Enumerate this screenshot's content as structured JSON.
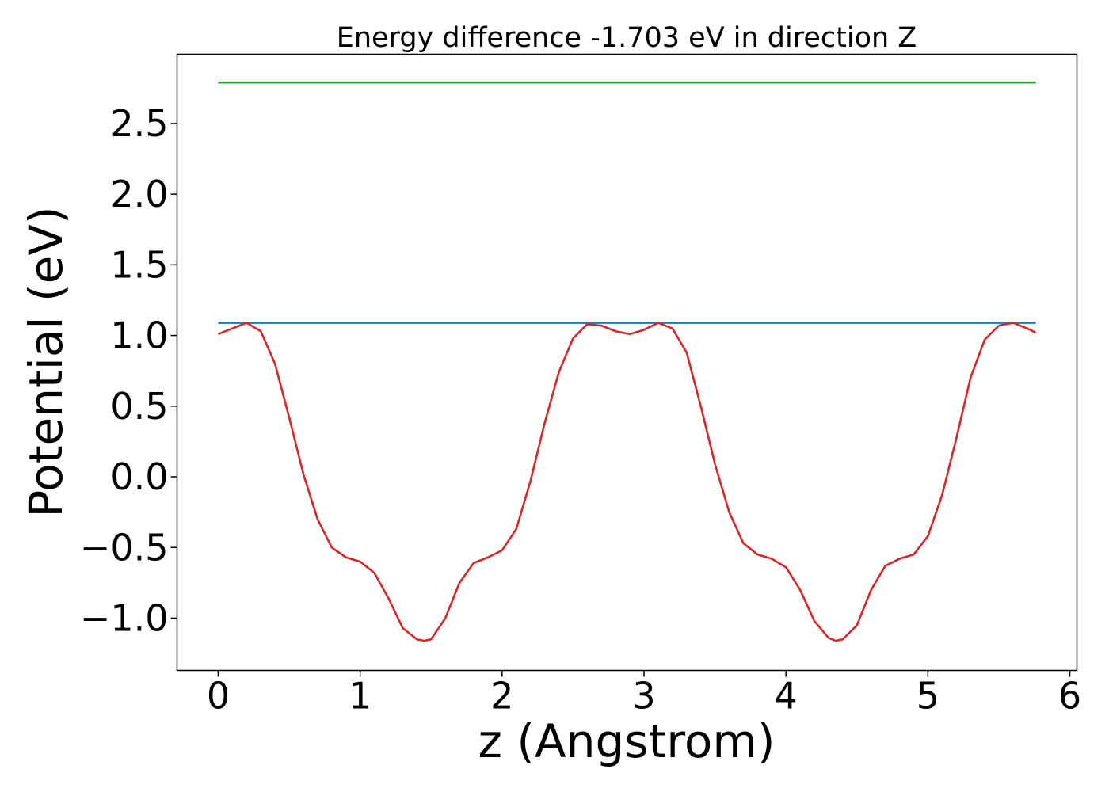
{
  "chart_data": {
    "type": "line",
    "title": "Energy difference -1.703 eV in direction Z",
    "xlabel": "z (Angstrom)",
    "ylabel": "Potential (eV)",
    "xlim": [
      -0.29,
      6.05
    ],
    "ylim": [
      -1.37,
      2.99
    ],
    "xticks": [
      0,
      1,
      2,
      3,
      4,
      5,
      6
    ],
    "xtick_labels": [
      "0",
      "1",
      "2",
      "3",
      "4",
      "5",
      "6"
    ],
    "yticks": [
      -1.0,
      -0.5,
      0.0,
      0.5,
      1.0,
      1.5,
      2.0,
      2.5
    ],
    "ytick_labels": [
      "−1.0",
      "−0.5",
      "0.0",
      "0.5",
      "1.0",
      "1.5",
      "2.0",
      "2.5"
    ],
    "grid": false,
    "legend": "none",
    "colors": {
      "potential": "#d62728",
      "level_low": "#1f77b4",
      "level_high": "#2ca02c"
    },
    "series": [
      {
        "x": [
          0.0,
          0.1,
          0.2,
          0.3,
          0.4,
          0.5,
          0.6,
          0.7,
          0.8,
          0.9,
          1.0,
          1.1,
          1.2,
          1.3,
          1.4,
          1.45,
          1.5,
          1.6,
          1.7,
          1.8,
          1.9,
          2.0,
          2.1,
          2.2,
          2.3,
          2.4,
          2.5,
          2.6,
          2.7,
          2.8,
          2.9,
          3.0,
          3.1,
          3.2,
          3.3,
          3.4,
          3.5,
          3.6,
          3.7,
          3.8,
          3.9,
          4.0,
          4.1,
          4.2,
          4.3,
          4.35,
          4.4,
          4.5,
          4.6,
          4.7,
          4.8,
          4.9,
          5.0,
          5.1,
          5.2,
          5.3,
          5.4,
          5.5,
          5.6,
          5.7,
          5.76
        ],
        "y": [
          1.01,
          1.05,
          1.09,
          1.03,
          0.8,
          0.42,
          0.02,
          -0.3,
          -0.5,
          -0.57,
          -0.6,
          -0.68,
          -0.86,
          -1.07,
          -1.15,
          -1.16,
          -1.15,
          -1.0,
          -0.75,
          -0.61,
          -0.57,
          -0.52,
          -0.37,
          -0.03,
          0.38,
          0.74,
          0.98,
          1.08,
          1.07,
          1.03,
          1.01,
          1.04,
          1.09,
          1.05,
          0.88,
          0.5,
          0.09,
          -0.25,
          -0.47,
          -0.55,
          -0.58,
          -0.64,
          -0.8,
          -1.02,
          -1.14,
          -1.16,
          -1.15,
          -1.05,
          -0.8,
          -0.63,
          -0.58,
          -0.55,
          -0.42,
          -0.13,
          0.27,
          0.7,
          0.97,
          1.07,
          1.09,
          1.05,
          1.02
        ]
      },
      {
        "x": [
          0.0,
          5.76
        ],
        "y": [
          1.09,
          1.09
        ]
      },
      {
        "x": [
          0.0,
          5.76
        ],
        "y": [
          2.79,
          2.79
        ]
      }
    ]
  }
}
